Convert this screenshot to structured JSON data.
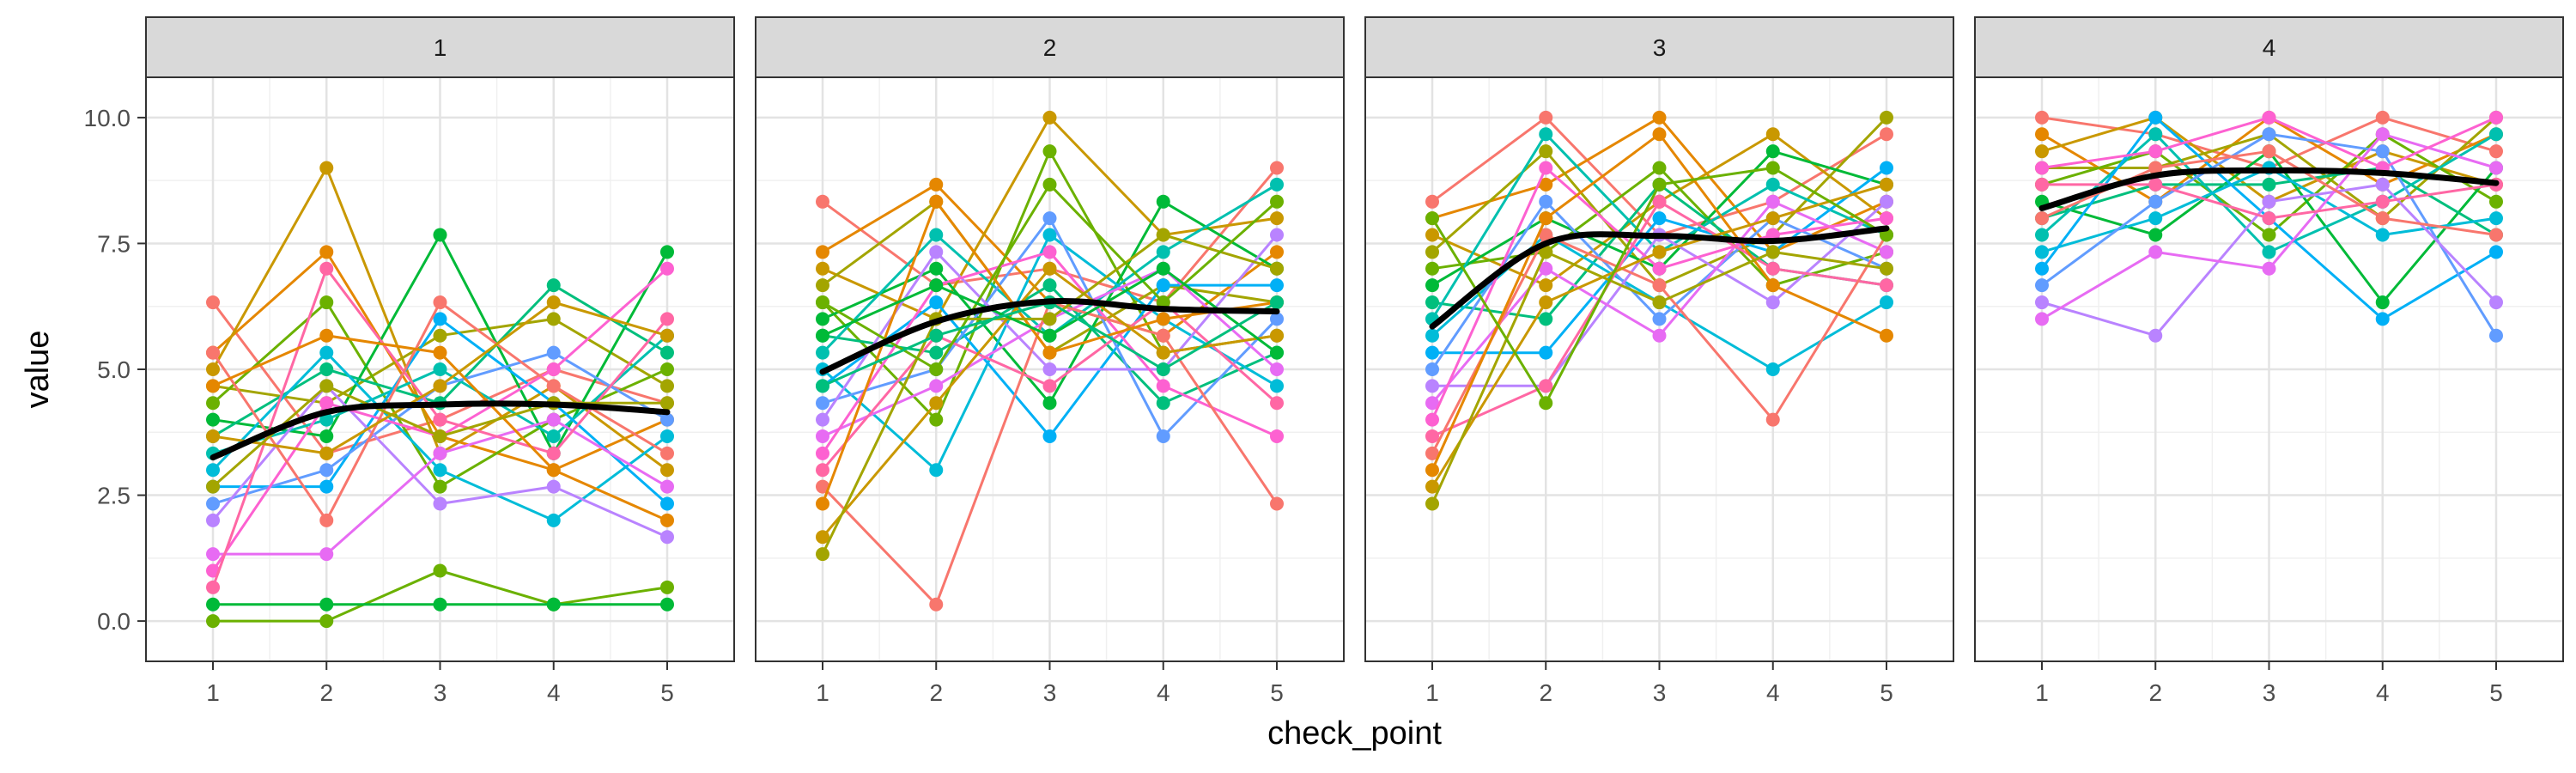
{
  "chart_data": {
    "type": "line",
    "title": "",
    "xlabel": "check_point",
    "ylabel": "value",
    "x_ticks": [
      1,
      2,
      3,
      4,
      5
    ],
    "y_ticks": [
      0.0,
      2.5,
      5.0,
      7.5,
      10.0
    ],
    "y_tick_labels": [
      "0.0",
      "2.5",
      "5.0",
      "7.5",
      "10.0"
    ],
    "ylim": [
      -0.8,
      10.8
    ],
    "grid": true,
    "legend": "none",
    "smooth_color": "#000000",
    "panel_border_color": "#333333",
    "strip_fill": "#d9d9d9",
    "palette": [
      "#F8766D",
      "#E58700",
      "#C99800",
      "#A3A500",
      "#6BB100",
      "#00BA38",
      "#00BF7D",
      "#00C0AF",
      "#00BCD8",
      "#00B0F6",
      "#619CFF",
      "#B983FF",
      "#E76BF3",
      "#FD61D1",
      "#FF67A4"
    ],
    "facets": [
      {
        "label": "1",
        "smooth": [
          3.25,
          4.15,
          4.3,
          4.3,
          4.15
        ],
        "series": [
          [
            6.33,
            3.33,
            4.0,
            5.0,
            4.33
          ],
          [
            5.33,
            7.33,
            3.67,
            3.0,
            4.0
          ],
          [
            5.0,
            9.0,
            3.33,
            4.67,
            3.0
          ],
          [
            4.67,
            4.33,
            5.67,
            6.0,
            4.67
          ],
          [
            4.33,
            6.33,
            2.67,
            4.0,
            5.0
          ],
          [
            4.0,
            3.67,
            7.67,
            3.33,
            7.33
          ],
          [
            3.67,
            5.0,
            4.33,
            6.67,
            5.33
          ],
          [
            3.33,
            4.0,
            5.0,
            3.67,
            5.67
          ],
          [
            3.0,
            5.33,
            3.0,
            2.0,
            3.67
          ],
          [
            2.67,
            2.67,
            6.0,
            4.33,
            2.33
          ],
          [
            2.33,
            3.0,
            4.67,
            5.33,
            4.0
          ],
          [
            2.0,
            4.67,
            2.33,
            2.67,
            1.67
          ],
          [
            1.33,
            1.33,
            3.33,
            4.0,
            2.67
          ],
          [
            1.0,
            4.33,
            3.67,
            5.0,
            7.0
          ],
          [
            0.67,
            7.0,
            4.0,
            3.33,
            6.0
          ],
          [
            5.33,
            2.0,
            6.33,
            4.67,
            3.33
          ],
          [
            4.67,
            5.67,
            5.33,
            3.0,
            2.0
          ],
          [
            3.67,
            3.33,
            4.67,
            6.33,
            5.67
          ],
          [
            2.67,
            4.67,
            3.67,
            4.33,
            4.33
          ],
          [
            0.0,
            0.0,
            1.0,
            0.33,
            0.67
          ],
          [
            0.33,
            0.33,
            0.33,
            0.33,
            0.33
          ]
        ]
      },
      {
        "label": "2",
        "smooth": [
          4.95,
          5.95,
          6.35,
          6.2,
          6.15
        ],
        "series": [
          [
            8.33,
            6.67,
            7.0,
            6.33,
            9.0
          ],
          [
            7.33,
            8.67,
            6.33,
            5.67,
            7.33
          ],
          [
            7.0,
            6.0,
            10.0,
            7.67,
            8.0
          ],
          [
            6.67,
            8.33,
            5.33,
            6.67,
            6.33
          ],
          [
            6.33,
            4.0,
            9.33,
            5.33,
            5.67
          ],
          [
            6.0,
            7.0,
            4.33,
            8.33,
            7.0
          ],
          [
            5.67,
            5.33,
            6.67,
            4.33,
            5.33
          ],
          [
            5.33,
            7.67,
            5.67,
            7.33,
            8.67
          ],
          [
            5.0,
            3.0,
            7.67,
            6.0,
            4.67
          ],
          [
            4.67,
            6.33,
            3.67,
            6.67,
            6.67
          ],
          [
            4.33,
            5.0,
            8.0,
            3.67,
            6.0
          ],
          [
            4.0,
            7.33,
            5.0,
            5.0,
            7.67
          ],
          [
            3.67,
            4.67,
            6.0,
            7.0,
            5.0
          ],
          [
            3.33,
            6.67,
            7.33,
            4.67,
            3.67
          ],
          [
            3.0,
            5.67,
            4.67,
            6.33,
            4.33
          ],
          [
            2.67,
            0.33,
            6.33,
            5.67,
            2.33
          ],
          [
            2.33,
            8.33,
            5.33,
            6.0,
            6.33
          ],
          [
            1.67,
            4.33,
            7.0,
            5.33,
            5.67
          ],
          [
            1.33,
            6.0,
            6.0,
            7.67,
            7.0
          ],
          [
            6.33,
            5.0,
            8.67,
            6.33,
            8.33
          ],
          [
            5.67,
            6.67,
            5.67,
            7.0,
            5.33
          ],
          [
            4.67,
            5.67,
            6.33,
            5.0,
            6.33
          ]
        ]
      },
      {
        "label": "3",
        "smooth": [
          5.85,
          7.5,
          7.65,
          7.55,
          7.8
        ],
        "series": [
          [
            8.33,
            10.0,
            7.67,
            8.33,
            9.67
          ],
          [
            8.0,
            8.67,
            10.0,
            7.33,
            8.33
          ],
          [
            7.67,
            6.67,
            8.33,
            9.67,
            8.0
          ],
          [
            7.33,
            9.33,
            6.67,
            7.67,
            10.0
          ],
          [
            7.0,
            7.33,
            9.0,
            6.67,
            7.33
          ],
          [
            6.67,
            8.0,
            7.0,
            9.33,
            8.67
          ],
          [
            6.33,
            6.0,
            8.67,
            7.0,
            6.67
          ],
          [
            6.0,
            9.67,
            7.33,
            8.67,
            7.67
          ],
          [
            5.67,
            7.67,
            6.33,
            5.0,
            6.33
          ],
          [
            5.33,
            5.33,
            8.0,
            7.33,
            9.0
          ],
          [
            5.0,
            8.33,
            6.0,
            8.0,
            7.0
          ],
          [
            4.67,
            4.67,
            7.67,
            6.33,
            8.33
          ],
          [
            4.33,
            7.0,
            5.67,
            8.33,
            7.33
          ],
          [
            4.0,
            9.0,
            7.0,
            7.67,
            8.0
          ],
          [
            3.67,
            4.67,
            8.33,
            7.0,
            6.67
          ],
          [
            3.33,
            7.67,
            6.67,
            4.0,
            7.67
          ],
          [
            3.0,
            8.0,
            9.67,
            6.67,
            5.67
          ],
          [
            2.67,
            6.33,
            7.33,
            8.0,
            8.67
          ],
          [
            2.33,
            7.33,
            6.33,
            7.33,
            7.0
          ],
          [
            8.0,
            4.33,
            8.67,
            9.0,
            7.67
          ]
        ]
      },
      {
        "label": "4",
        "smooth": [
          8.2,
          8.85,
          8.95,
          8.9,
          8.7
        ],
        "series": [
          [
            10.0,
            9.67,
            9.0,
            10.0,
            9.33
          ],
          [
            9.67,
            8.33,
            10.0,
            8.67,
            9.67
          ],
          [
            9.33,
            10.0,
            8.33,
            9.33,
            8.67
          ],
          [
            9.0,
            9.0,
            9.67,
            8.0,
            10.0
          ],
          [
            8.67,
            9.33,
            7.67,
            9.67,
            8.33
          ],
          [
            8.33,
            7.67,
            9.33,
            6.33,
            9.0
          ],
          [
            8.0,
            8.67,
            8.67,
            9.0,
            7.67
          ],
          [
            7.67,
            9.67,
            7.33,
            8.33,
            9.67
          ],
          [
            7.33,
            8.0,
            9.0,
            7.67,
            8.0
          ],
          [
            7.0,
            10.0,
            8.0,
            6.0,
            7.33
          ],
          [
            6.67,
            8.33,
            9.67,
            9.33,
            5.67
          ],
          [
            6.33,
            5.67,
            8.33,
            8.67,
            6.33
          ],
          [
            6.0,
            7.33,
            7.0,
            9.67,
            9.0
          ],
          [
            9.0,
            9.33,
            10.0,
            9.0,
            10.0
          ],
          [
            8.67,
            8.67,
            8.0,
            8.33,
            8.67
          ],
          [
            8.0,
            9.0,
            9.33,
            8.0,
            7.67
          ]
        ]
      }
    ]
  }
}
